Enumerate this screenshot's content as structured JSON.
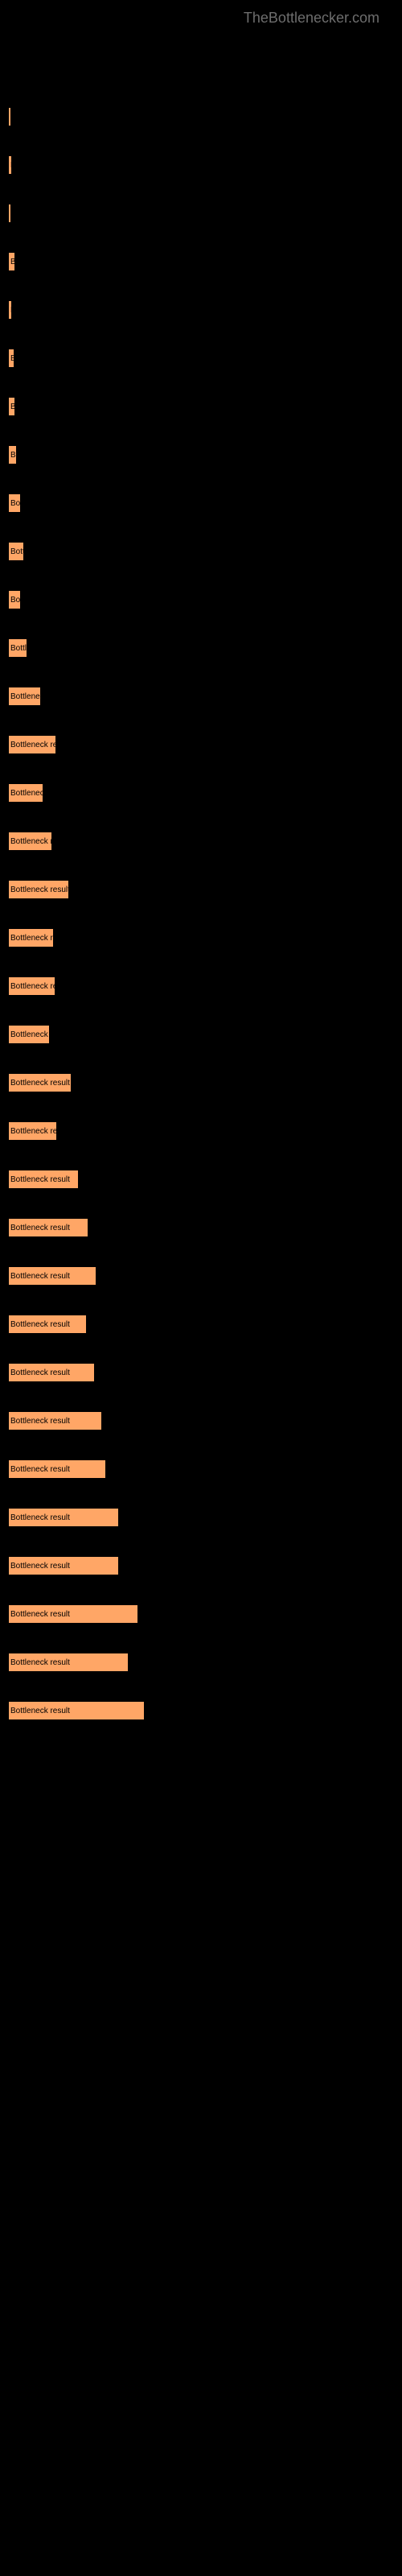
{
  "watermark": "TheBottlenecker.com",
  "chart": {
    "type": "horizontal-bar",
    "bar_label": "Bottleneck result",
    "bar_color": "#ffa666",
    "bar_border_color": "#000000",
    "background_color": "#000000",
    "text_color": "#000000",
    "label_fontsize": 10,
    "max_width": 170,
    "bars": [
      {
        "width": 3
      },
      {
        "width": 5
      },
      {
        "width": 4
      },
      {
        "width": 9
      },
      {
        "width": 5
      },
      {
        "width": 8
      },
      {
        "width": 9
      },
      {
        "width": 11
      },
      {
        "width": 16
      },
      {
        "width": 20
      },
      {
        "width": 16
      },
      {
        "width": 24
      },
      {
        "width": 41
      },
      {
        "width": 60
      },
      {
        "width": 44
      },
      {
        "width": 55
      },
      {
        "width": 76
      },
      {
        "width": 57
      },
      {
        "width": 59
      },
      {
        "width": 52
      },
      {
        "width": 79
      },
      {
        "width": 61
      },
      {
        "width": 88
      },
      {
        "width": 100
      },
      {
        "width": 110
      },
      {
        "width": 98
      },
      {
        "width": 108
      },
      {
        "width": 117
      },
      {
        "width": 122
      },
      {
        "width": 138
      },
      {
        "width": 138
      },
      {
        "width": 162
      },
      {
        "width": 150
      },
      {
        "width": 170
      }
    ]
  }
}
